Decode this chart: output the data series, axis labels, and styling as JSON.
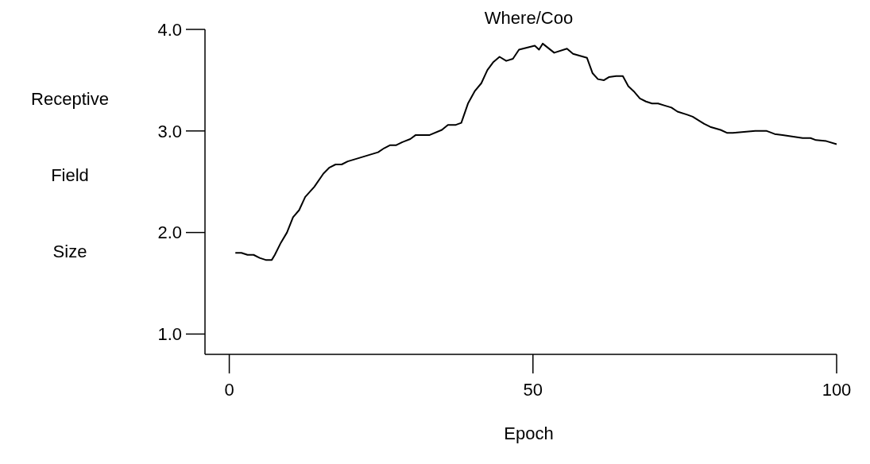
{
  "chart_data": {
    "type": "line",
    "title": "Where/Coo",
    "xlabel": "Epoch",
    "ylabel": "Receptive Field Size",
    "x": [
      1,
      2,
      3,
      4,
      5,
      6,
      7,
      7.5,
      8.5,
      9.5,
      10.5,
      11.5,
      12.5,
      14,
      15.5,
      16.5,
      17.5,
      18.5,
      19.5,
      20.6,
      24.5,
      25.5,
      26.5,
      27.5,
      28.5,
      29.8,
      30.7,
      33,
      35,
      36,
      37.3,
      38.2,
      39.3,
      40.4,
      41.5,
      42.5,
      43.5,
      44.5,
      45.6,
      46.7,
      47.7,
      49,
      50.3,
      51,
      51.6,
      53.5,
      55.6,
      56.6,
      58.9,
      59.8,
      60.7,
      61.7,
      62.5,
      63.7,
      64.8,
      65.7,
      66.6,
      67.6,
      68.6,
      69.6,
      70.6,
      71.7,
      72.8,
      73.8,
      75.4,
      76.3,
      77.4,
      78.2,
      79.2,
      80.9,
      82,
      82.9,
      86.6,
      88.5,
      89.8,
      91.1,
      94.4,
      95.7,
      96.6,
      98.3,
      100
    ],
    "series": [
      {
        "color": "#000000",
        "values": [
          1.8,
          1.8,
          1.78,
          1.78,
          1.75,
          1.73,
          1.73,
          1.78,
          1.9,
          2.0,
          2.15,
          2.22,
          2.35,
          2.45,
          2.58,
          2.64,
          2.67,
          2.67,
          2.7,
          2.72,
          2.79,
          2.83,
          2.86,
          2.86,
          2.89,
          2.92,
          2.96,
          2.96,
          3.01,
          3.06,
          3.06,
          3.08,
          3.27,
          3.39,
          3.47,
          3.6,
          3.68,
          3.73,
          3.69,
          3.71,
          3.8,
          3.82,
          3.84,
          3.8,
          3.86,
          3.77,
          3.81,
          3.76,
          3.72,
          3.57,
          3.51,
          3.5,
          3.53,
          3.54,
          3.54,
          3.44,
          3.39,
          3.32,
          3.29,
          3.27,
          3.27,
          3.25,
          3.23,
          3.19,
          3.16,
          3.14,
          3.1,
          3.07,
          3.04,
          3.01,
          2.98,
          2.98,
          3.0,
          3.0,
          2.97,
          2.96,
          2.93,
          2.93,
          2.91,
          2.9,
          2.87
        ]
      }
    ],
    "xlim": [
      -4,
      100
    ],
    "xticks": [
      0,
      50,
      100
    ],
    "ylim": [
      0.8,
      4.0
    ],
    "yticks": [
      {
        "value": 1,
        "label": "1.0"
      },
      {
        "value": 2,
        "label": "2.0"
      },
      {
        "value": 3,
        "label": "3.0"
      },
      {
        "value": 4,
        "label": "4.0"
      }
    ],
    "grid": false,
    "marker": "none",
    "line_style": "solid"
  }
}
